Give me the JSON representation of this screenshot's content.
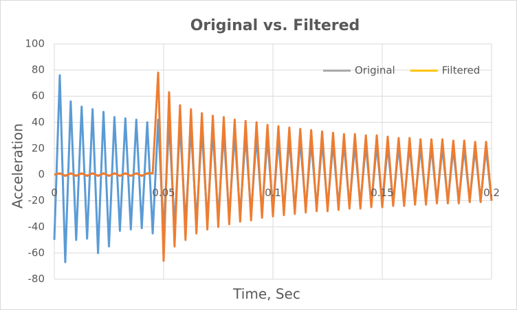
{
  "chart_data": {
    "type": "line",
    "title": "Original vs. Filtered",
    "x_label": "Time, Sec",
    "y_label": "Acceleration",
    "x": [
      0,
      0.0025,
      0.005,
      0.0075,
      0.01,
      0.0125,
      0.015,
      0.0175,
      0.02,
      0.0225,
      0.025,
      0.0275,
      0.03,
      0.0325,
      0.035,
      0.0375,
      0.04,
      0.0425,
      0.045,
      0.0475,
      0.05,
      0.0525,
      0.055,
      0.0575,
      0.06,
      0.0625,
      0.065,
      0.0675,
      0.07,
      0.0725,
      0.075,
      0.0775,
      0.08,
      0.0825,
      0.085,
      0.0875,
      0.09,
      0.0925,
      0.095,
      0.0975,
      0.1,
      0.1025,
      0.105,
      0.1075,
      0.11,
      0.1125,
      0.115,
      0.1175,
      0.12,
      0.1225,
      0.125,
      0.1275,
      0.13,
      0.1325,
      0.135,
      0.1375,
      0.14,
      0.1425,
      0.145,
      0.1475,
      0.15,
      0.1525,
      0.155,
      0.1575,
      0.16,
      0.1625,
      0.165,
      0.1675,
      0.17,
      0.1725,
      0.175,
      0.1775,
      0.18,
      0.1825,
      0.185,
      0.1875,
      0.19,
      0.1925,
      0.195,
      0.1975,
      0.2
    ],
    "series": [
      {
        "name": "Original",
        "color": "#5b9bd5",
        "legend_color": "#a5a5a5",
        "values": [
          -50,
          76,
          -67,
          56,
          -50,
          52,
          -49,
          50,
          -60,
          48,
          -55,
          44,
          -43,
          43,
          -42,
          42,
          -41,
          40,
          -45,
          42,
          -45,
          40,
          -40,
          38,
          -38,
          36,
          -36,
          34,
          -35,
          33,
          -33,
          32,
          -32,
          31,
          -31,
          30,
          -30,
          29,
          -29,
          28,
          -28,
          27,
          -27,
          27,
          -26,
          26,
          -26,
          25,
          -25,
          25,
          -25,
          24,
          -24,
          24,
          -24,
          23,
          -23,
          23,
          -23,
          23,
          -23,
          22,
          -22,
          22,
          -22,
          22,
          -21,
          21,
          -21,
          21,
          -21,
          21,
          -21,
          20,
          -20,
          20,
          -20,
          20,
          -20,
          20,
          -20
        ]
      },
      {
        "name": "Filtered",
        "color": "#ed7d31",
        "legend_color": "#ffc000",
        "values": [
          0,
          1,
          -1,
          1,
          -1,
          1,
          -1,
          1,
          -1,
          1,
          -1,
          1,
          -1,
          1,
          -1,
          1,
          -1,
          1,
          1,
          78,
          -66,
          63,
          -55,
          53,
          -50,
          50,
          -45,
          47,
          -42,
          45,
          -40,
          44,
          -38,
          42,
          -36,
          41,
          -35,
          40,
          -33,
          38,
          -32,
          37,
          -31,
          36,
          -30,
          35,
          -29,
          34,
          -28,
          33,
          -28,
          32,
          -27,
          31,
          -26,
          31,
          -26,
          30,
          -25,
          30,
          -25,
          29,
          -24,
          28,
          -24,
          28,
          -23,
          27,
          -23,
          27,
          -22,
          27,
          -22,
          26,
          -22,
          26,
          -21,
          25,
          -21,
          25,
          -20
        ]
      }
    ],
    "xlim": [
      0,
      0.2
    ],
    "xticks": [
      0,
      0.05,
      0.1,
      0.15,
      0.2
    ],
    "ylim": [
      -80,
      100
    ],
    "yticks": [
      -80,
      -60,
      -40,
      -20,
      0,
      20,
      40,
      60,
      80,
      100
    ],
    "grid": true,
    "legend": "top-right"
  }
}
